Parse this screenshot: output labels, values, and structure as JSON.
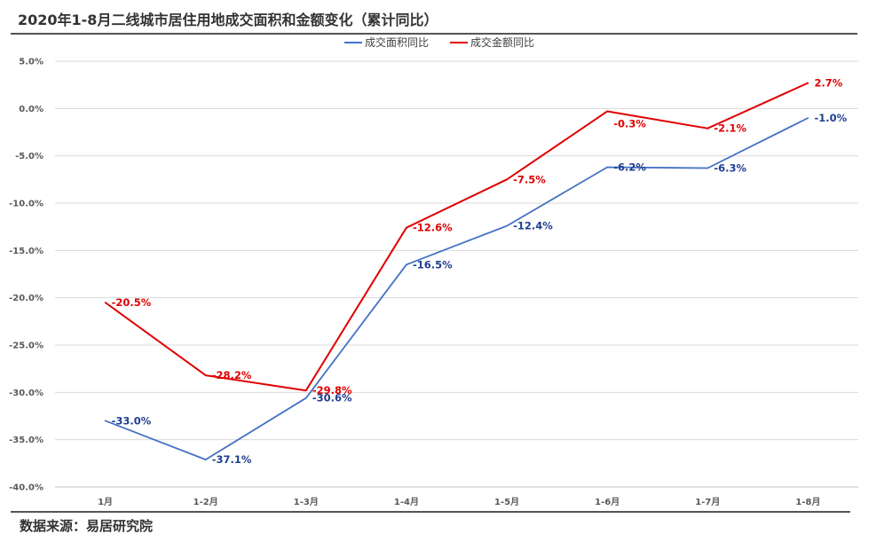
{
  "title": "2020年1-8月二线城市居住用地成交面积和金额变化（累计同比）",
  "source": "数据来源：易居研究院",
  "chart_data": {
    "type": "line",
    "categories": [
      "1月",
      "1-2月",
      "1-3月",
      "1-4月",
      "1-5月",
      "1-6月",
      "1-7月",
      "1-8月"
    ],
    "yticks": [
      "5.0%",
      "0.0%",
      "-5.0%",
      "-10.0%",
      "-15.0%",
      "-20.0%",
      "-25.0%",
      "-30.0%",
      "-35.0%",
      "-40.0%"
    ],
    "ylim": [
      -40,
      5
    ],
    "grid": true,
    "legend_position": "top-center",
    "series": [
      {
        "name": "成交面积同比",
        "color": "#4472C4",
        "values": [
          -33.0,
          -37.1,
          -30.6,
          -16.5,
          -12.4,
          -6.2,
          -6.3,
          -1.0
        ],
        "labels": [
          "-33.0%",
          "-37.1%",
          "-30.6%",
          "-16.5%",
          "-12.4%",
          "-6.2%",
          "-6.3%",
          "-1.0%"
        ],
        "label_color": "#1F3F8F"
      },
      {
        "name": "成交金额同比",
        "color": "#E00000",
        "values": [
          -20.5,
          -28.2,
          -29.8,
          -12.6,
          -7.5,
          -0.3,
          -2.1,
          2.7
        ],
        "labels": [
          "-20.5%",
          "-28.2%",
          "-29.8%",
          "-12.6%",
          "-7.5%",
          "-0.3%",
          "-2.1%",
          "2.7%"
        ],
        "label_color": "#E00000"
      }
    ]
  }
}
